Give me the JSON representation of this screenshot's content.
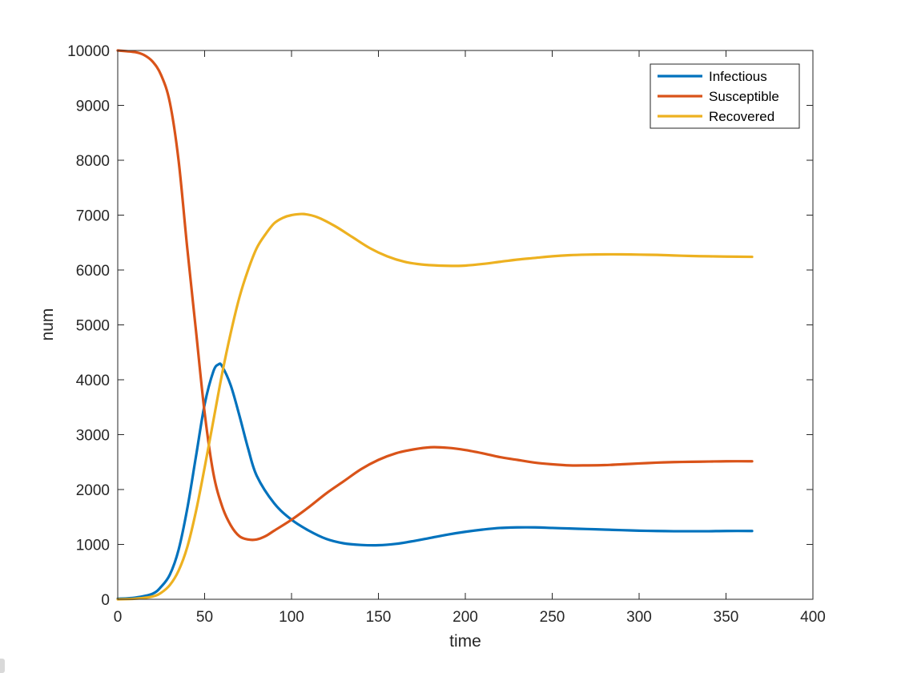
{
  "chart_data": {
    "type": "line",
    "title": "",
    "xlabel": "time",
    "ylabel": "num",
    "xlim": [
      0,
      400
    ],
    "ylim": [
      0,
      10000
    ],
    "xticks": [
      0,
      50,
      100,
      150,
      200,
      250,
      300,
      350,
      400
    ],
    "yticks": [
      0,
      1000,
      2000,
      3000,
      4000,
      5000,
      6000,
      7000,
      8000,
      9000,
      10000
    ],
    "grid": false,
    "legend_position": "top-right",
    "series": [
      {
        "name": "Infectious",
        "color": "#0072BD",
        "x": [
          0,
          10,
          20,
          25,
          30,
          35,
          40,
          45,
          50,
          55,
          58,
          60,
          65,
          70,
          75,
          80,
          90,
          100,
          110,
          120,
          130,
          140,
          150,
          160,
          170,
          180,
          190,
          200,
          210,
          220,
          230,
          240,
          250,
          260,
          270,
          280,
          290,
          300,
          310,
          320,
          330,
          340,
          350,
          365
        ],
        "y": [
          10,
          30,
          100,
          230,
          450,
          900,
          1650,
          2600,
          3550,
          4150,
          4280,
          4250,
          3900,
          3350,
          2750,
          2250,
          1750,
          1450,
          1250,
          1100,
          1020,
          990,
          985,
          1010,
          1060,
          1120,
          1180,
          1230,
          1270,
          1300,
          1310,
          1310,
          1300,
          1290,
          1280,
          1270,
          1260,
          1250,
          1245,
          1240,
          1240,
          1240,
          1245,
          1245
        ]
      },
      {
        "name": "Susceptible",
        "color": "#D95319",
        "x": [
          0,
          10,
          15,
          20,
          25,
          30,
          35,
          40,
          45,
          50,
          55,
          60,
          65,
          70,
          75,
          80,
          85,
          90,
          100,
          110,
          120,
          130,
          140,
          150,
          160,
          170,
          180,
          190,
          200,
          210,
          220,
          230,
          240,
          250,
          260,
          270,
          280,
          290,
          300,
          310,
          320,
          330,
          340,
          350,
          365
        ],
        "y": [
          10000,
          9970,
          9920,
          9800,
          9550,
          9050,
          8000,
          6400,
          4900,
          3400,
          2300,
          1700,
          1350,
          1150,
          1090,
          1090,
          1150,
          1250,
          1450,
          1680,
          1930,
          2150,
          2370,
          2540,
          2660,
          2730,
          2770,
          2760,
          2720,
          2660,
          2590,
          2540,
          2490,
          2460,
          2440,
          2440,
          2445,
          2460,
          2475,
          2490,
          2500,
          2505,
          2510,
          2515,
          2515
        ]
      },
      {
        "name": "Recovered",
        "color": "#EDB120",
        "x": [
          0,
          10,
          20,
          25,
          30,
          35,
          40,
          45,
          50,
          55,
          60,
          65,
          70,
          75,
          80,
          85,
          90,
          95,
          100,
          107,
          115,
          125,
          135,
          145,
          155,
          165,
          175,
          185,
          195,
          200,
          210,
          220,
          230,
          240,
          250,
          260,
          270,
          280,
          290,
          300,
          310,
          320,
          330,
          340,
          350,
          365
        ],
        "y": [
          0,
          10,
          50,
          120,
          260,
          520,
          950,
          1600,
          2400,
          3250,
          4100,
          4850,
          5500,
          6000,
          6400,
          6650,
          6850,
          6950,
          7000,
          7020,
          6960,
          6800,
          6600,
          6400,
          6250,
          6150,
          6100,
          6080,
          6075,
          6080,
          6110,
          6150,
          6190,
          6220,
          6250,
          6270,
          6280,
          6285,
          6285,
          6280,
          6275,
          6265,
          6255,
          6250,
          6245,
          6240
        ]
      }
    ]
  }
}
